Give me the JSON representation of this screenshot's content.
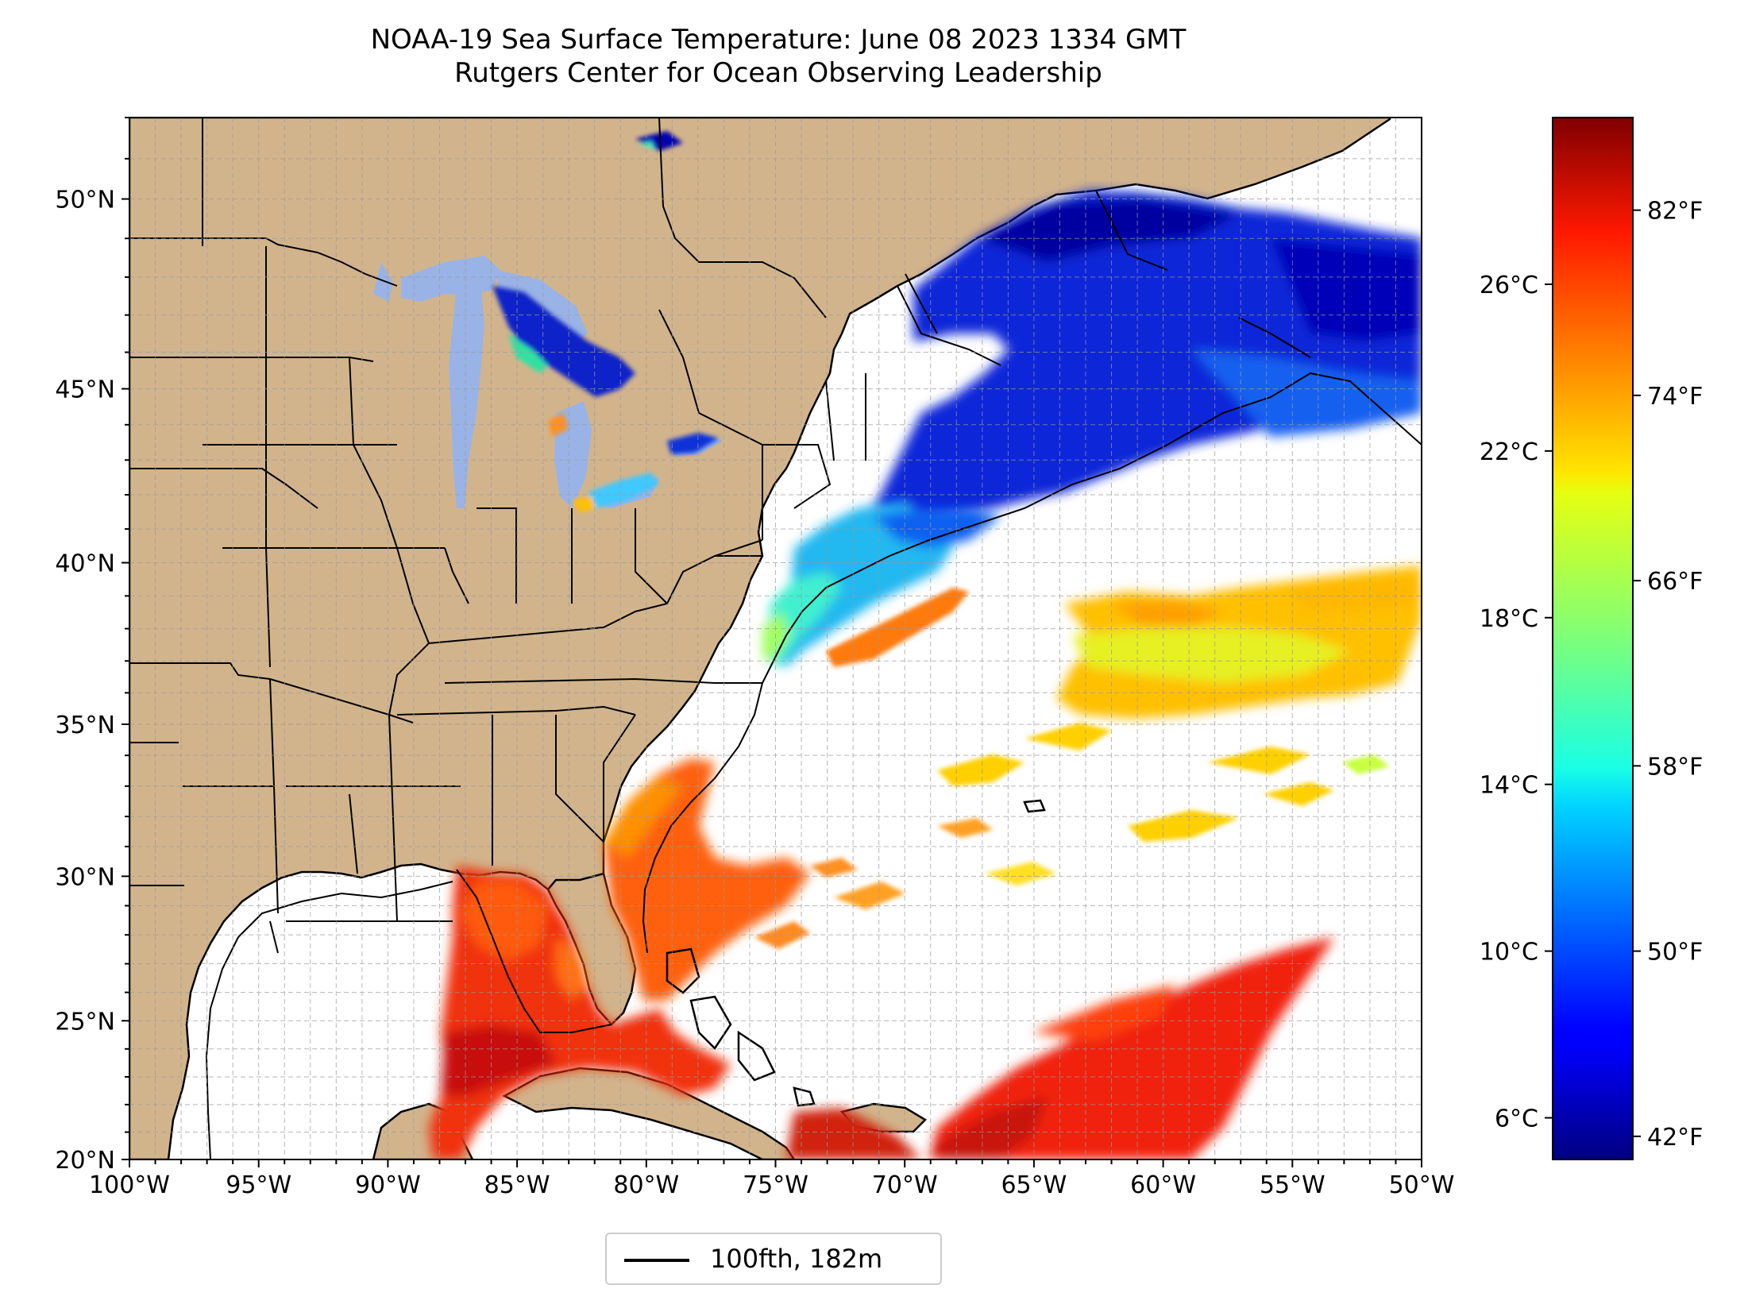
{
  "title": {
    "line1": "NOAA-19 Sea Surface Temperature: June 08 2023 1334 GMT",
    "line2": "Rutgers Center for Ocean Observing Leadership"
  },
  "map": {
    "lon_range": [
      -100,
      -50
    ],
    "lat_range": [
      20,
      52
    ],
    "lon_ticks": [
      "100°W",
      "95°W",
      "90°W",
      "85°W",
      "80°W",
      "75°W",
      "70°W",
      "65°W",
      "60°W",
      "55°W",
      "50°W"
    ],
    "lat_ticks": [
      "20°N",
      "25°N",
      "30°N",
      "35°N",
      "40°N",
      "45°N",
      "50°N"
    ],
    "lat_tick_values": [
      20,
      25,
      30,
      35,
      40,
      45,
      50
    ],
    "grid": true,
    "colors": {
      "land": "#d2b48c",
      "lakes": "#99b3e6",
      "ocean_no_data": "#ffffff",
      "coastline": "#000000"
    }
  },
  "colorbar": {
    "colormap": "jet",
    "range_c": [
      5,
      30
    ],
    "celsius_ticks": [
      "6°C",
      "10°C",
      "14°C",
      "18°C",
      "22°C",
      "26°C"
    ],
    "celsius_tick_values": [
      6,
      10,
      14,
      18,
      22,
      26
    ],
    "fahrenheit_ticks": [
      "42°F",
      "50°F",
      "58°F",
      "66°F",
      "74°F",
      "82°F"
    ],
    "fahrenheit_tick_values": [
      42,
      50,
      58,
      66,
      74,
      82
    ]
  },
  "legend": {
    "label": "100fth, 182m"
  }
}
